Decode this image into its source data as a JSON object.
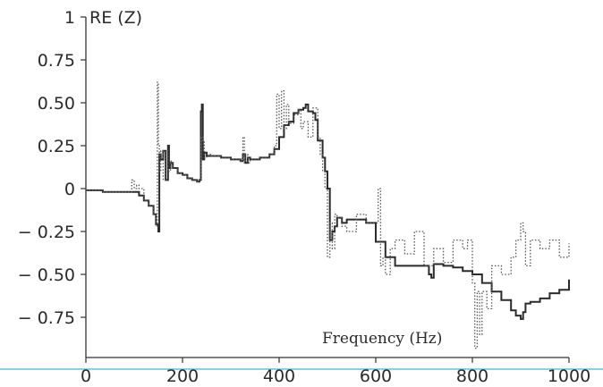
{
  "chart_data": {
    "type": "line",
    "title": "",
    "ylabel": "RE (Z)",
    "xlabel": "Frequency (Hz)",
    "xlim": [
      0,
      1000
    ],
    "ylim": [
      -0.93,
      1.0
    ],
    "grid": false,
    "legend": "none",
    "x_ticks": [
      0,
      200,
      400,
      600,
      800,
      1000
    ],
    "x_tick_labels": [
      "0",
      "200",
      "400",
      "600",
      "800",
      "1000"
    ],
    "y_ticks": [
      1,
      0.75,
      0.5,
      0.25,
      0,
      -0.25,
      -0.5,
      -0.75
    ],
    "y_tick_labels": [
      "1",
      "0.75",
      "0.50",
      "0.25",
      "0",
      "− 0.25",
      "− 0.50",
      "− 0.75"
    ],
    "series": [
      {
        "style": "solid",
        "color": "#2b2b2b",
        "x": [
          0,
          20,
          35,
          45,
          60,
          80,
          100,
          110,
          120,
          130,
          140,
          145,
          150,
          152,
          155,
          160,
          165,
          170,
          172,
          175,
          180,
          190,
          200,
          210,
          220,
          230,
          235,
          238,
          240,
          242,
          245,
          250,
          260,
          280,
          300,
          320,
          325,
          330,
          335,
          340,
          360,
          380,
          390,
          400,
          410,
          420,
          430,
          440,
          450,
          455,
          460,
          470,
          475,
          480,
          490,
          495,
          500,
          505,
          510,
          515,
          520,
          530,
          540,
          560,
          580,
          600,
          620,
          640,
          660,
          680,
          700,
          710,
          715,
          720,
          740,
          760,
          780,
          800,
          820,
          840,
          860,
          880,
          890,
          900,
          905,
          910,
          920,
          940,
          960,
          980,
          1000
        ],
        "y": [
          -0.01,
          -0.01,
          -0.02,
          -0.02,
          -0.02,
          -0.02,
          -0.02,
          -0.04,
          -0.07,
          -0.1,
          -0.15,
          -0.21,
          -0.25,
          0.2,
          0.17,
          0.22,
          0.05,
          0.25,
          0.12,
          0.15,
          0.12,
          0.09,
          0.08,
          0.06,
          0.05,
          0.04,
          0.05,
          0.45,
          0.49,
          0.17,
          0.21,
          0.19,
          0.19,
          0.18,
          0.17,
          0.16,
          0.2,
          0.15,
          0.18,
          0.17,
          0.18,
          0.2,
          0.23,
          0.3,
          0.37,
          0.39,
          0.44,
          0.46,
          0.47,
          0.49,
          0.45,
          0.44,
          0.4,
          0.28,
          0.18,
          0.1,
          0.0,
          -0.3,
          -0.25,
          -0.22,
          -0.17,
          -0.2,
          -0.18,
          -0.18,
          -0.2,
          -0.31,
          -0.4,
          -0.45,
          -0.45,
          -0.45,
          -0.45,
          -0.5,
          -0.52,
          -0.44,
          -0.45,
          -0.46,
          -0.48,
          -0.5,
          -0.55,
          -0.6,
          -0.65,
          -0.71,
          -0.74,
          -0.76,
          -0.72,
          -0.67,
          -0.66,
          -0.64,
          -0.61,
          -0.59,
          -0.53
        ]
      },
      {
        "style": "dotted",
        "color": "#555555",
        "x": [
          0,
          20,
          35,
          45,
          60,
          80,
          95,
          100,
          105,
          110,
          120,
          130,
          140,
          145,
          148,
          150,
          152,
          155,
          160,
          165,
          170,
          175,
          180,
          190,
          200,
          210,
          220,
          230,
          235,
          238,
          242,
          245,
          250,
          260,
          280,
          300,
          320,
          325,
          328,
          330,
          335,
          340,
          360,
          380,
          390,
          395,
          400,
          405,
          410,
          415,
          420,
          430,
          440,
          445,
          450,
          460,
          470,
          480,
          485,
          490,
          495,
          500,
          505,
          510,
          515,
          520,
          530,
          540,
          560,
          580,
          600,
          605,
          610,
          615,
          620,
          630,
          640,
          660,
          680,
          700,
          720,
          740,
          760,
          780,
          790,
          800,
          805,
          810,
          815,
          820,
          830,
          840,
          860,
          880,
          890,
          900,
          905,
          910,
          920,
          940,
          960,
          980,
          1000
        ],
        "y": [
          -0.01,
          -0.01,
          -0.02,
          -0.02,
          -0.02,
          -0.02,
          0.05,
          0.0,
          0.02,
          0.0,
          -0.07,
          -0.1,
          -0.15,
          -0.22,
          0.62,
          0.25,
          0.1,
          0.22,
          0.05,
          0.22,
          0.1,
          0.16,
          0.12,
          0.09,
          0.08,
          0.06,
          0.05,
          0.04,
          0.05,
          0.3,
          0.28,
          0.18,
          0.2,
          0.19,
          0.18,
          0.17,
          0.16,
          0.3,
          0.15,
          0.2,
          0.15,
          0.17,
          0.18,
          0.2,
          0.25,
          0.55,
          0.35,
          0.57,
          0.35,
          0.49,
          0.38,
          0.43,
          0.46,
          0.35,
          0.39,
          0.3,
          0.47,
          0.3,
          0.2,
          0.1,
          0.0,
          -0.4,
          -0.2,
          -0.35,
          -0.15,
          -0.17,
          -0.22,
          -0.25,
          -0.15,
          -0.2,
          -0.2,
          0.0,
          -0.45,
          -0.4,
          -0.5,
          -0.35,
          -0.3,
          -0.38,
          -0.25,
          -0.45,
          -0.35,
          -0.43,
          -0.3,
          -0.35,
          -0.3,
          -0.55,
          -0.93,
          -0.6,
          -0.85,
          -0.6,
          -0.7,
          -0.45,
          -0.5,
          -0.4,
          -0.3,
          -0.2,
          -0.25,
          -0.45,
          -0.3,
          -0.35,
          -0.3,
          -0.4,
          -0.32
        ]
      }
    ]
  }
}
